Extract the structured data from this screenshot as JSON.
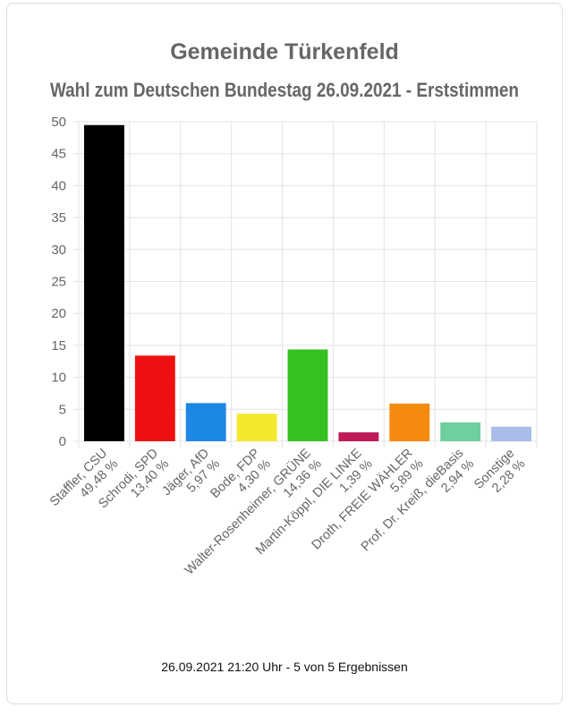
{
  "chart_data": {
    "type": "bar",
    "title": "Gemeinde Türkenfeld",
    "subtitle": "Wahl zum Deutschen Bundestag 26.09.2021  - Erststimmen",
    "categories": [
      "Staffler, CSU",
      "Schrodi, SPD",
      "Jäger, AfD",
      "Bode, FDP",
      "Walter-Rosenheimer, GRÜNE",
      "Martin-Köppl, DIE LINKE",
      "Droth, FREIE WÄHLER",
      "Prof. Dr. Kreiß, dieBasis",
      "Sonstige"
    ],
    "value_labels": [
      "49,48 %",
      "13,40 %",
      "5,97 %",
      "4,30 %",
      "14,36 %",
      "1,39 %",
      "5,89 %",
      "2,94 %",
      "2,28 %"
    ],
    "values": [
      49.48,
      13.4,
      5.97,
      4.3,
      14.36,
      1.39,
      5.89,
      2.94,
      2.28
    ],
    "colors": [
      "#000000",
      "#ee1111",
      "#1e88e5",
      "#f5e72e",
      "#33c21e",
      "#c0195a",
      "#f58a10",
      "#6fcf9f",
      "#a9bde8"
    ],
    "yticks": [
      "0",
      "5",
      "10",
      "15",
      "20",
      "25",
      "30",
      "35",
      "40",
      "45",
      "50"
    ],
    "ylim": [
      0,
      50
    ],
    "grid": true,
    "xlabel": "",
    "ylabel": ""
  },
  "footer": "26.09.2021 21:20 Uhr - 5 von 5 Ergebnissen"
}
